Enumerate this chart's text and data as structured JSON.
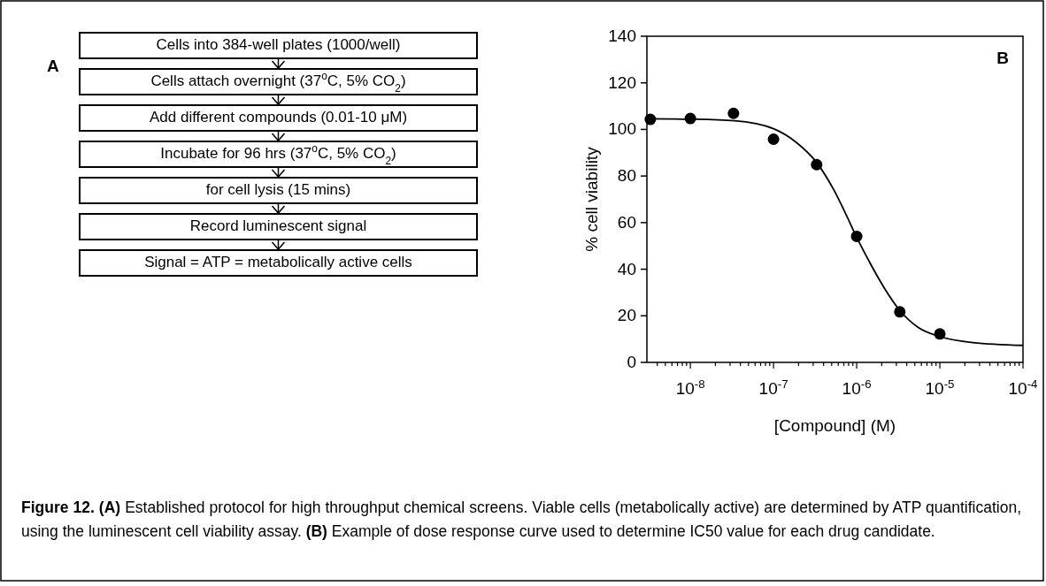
{
  "chart_data": [
    {
      "type": "other",
      "title": "A",
      "annotations": [
        "Cells into 384-well plates (1000/well)",
        "Cells attach overnight (37$^{o}$C, 5% CO$_{2}$)",
        "Add different compounds (0.01-10 μM)",
        "Incubate for 96 hrs (37$^{o}$C, 5% CO$_{2}$)",
        "for cell lysis (15 mins)",
        "Record luminescent signal",
        "Signal = ATP = metabolically active cells"
      ]
    },
    {
      "type": "scatter",
      "title": "B",
      "xlabel": "[Compound] (M)",
      "ylabel": "% cell viability",
      "log": "x",
      "xlim": [
        3e-09,
        0.0001
      ],
      "ylim": [
        0,
        140
      ],
      "yticks": [
        0,
        20,
        40,
        60,
        80,
        100,
        120,
        140
      ],
      "xticks": [
        {
          "value": 4e-09,
          "label": null
        },
        {
          "value": 5e-09,
          "label": null
        },
        {
          "value": 6e-09,
          "label": null
        },
        {
          "value": 7e-09,
          "label": null
        },
        {
          "value": 8e-09,
          "label": null
        },
        {
          "value": 9e-09,
          "label": null
        },
        {
          "value": 1e-08,
          "label": "10$^{-8}$"
        },
        {
          "value": 2e-08,
          "label": null
        },
        {
          "value": 3e-08,
          "label": null
        },
        {
          "value": 4e-08,
          "label": null
        },
        {
          "value": 5e-08,
          "label": null
        },
        {
          "value": 6e-08,
          "label": null
        },
        {
          "value": 7e-08,
          "label": null
        },
        {
          "value": 8e-08,
          "label": null
        },
        {
          "value": 9e-08,
          "label": null
        },
        {
          "value": 1e-07,
          "label": "10$^{-7}$"
        },
        {
          "value": 2e-07,
          "label": null
        },
        {
          "value": 3e-07,
          "label": null
        },
        {
          "value": 4e-07,
          "label": null
        },
        {
          "value": 5e-07,
          "label": null
        },
        {
          "value": 6e-07,
          "label": null
        },
        {
          "value": 7e-07,
          "label": null
        },
        {
          "value": 8e-07,
          "label": null
        },
        {
          "value": 9e-07,
          "label": null
        },
        {
          "value": 1e-06,
          "label": "10$^{-6}$"
        },
        {
          "value": 2e-06,
          "label": null
        },
        {
          "value": 3e-06,
          "label": null
        },
        {
          "value": 4e-06,
          "label": null
        },
        {
          "value": 5e-06,
          "label": null
        },
        {
          "value": 6e-06,
          "label": null
        },
        {
          "value": 7e-06,
          "label": null
        },
        {
          "value": 8e-06,
          "label": null
        },
        {
          "value": 9e-06,
          "label": null
        },
        {
          "value": 1e-05,
          "label": "10$^{-5}$"
        },
        {
          "value": 2e-05,
          "label": null
        },
        {
          "value": 3e-05,
          "label": null
        },
        {
          "value": 4e-05,
          "label": null
        },
        {
          "value": 5e-05,
          "label": null
        },
        {
          "value": 6e-05,
          "label": null
        },
        {
          "value": 7e-05,
          "label": null
        },
        {
          "value": 8e-05,
          "label": null
        },
        {
          "value": 9e-05,
          "label": null
        },
        {
          "value": 0.0001,
          "label": "10$^{-4}$"
        }
      ],
      "series": [
        {
          "type": "scatter",
          "marker": "circle",
          "color": "#000000",
          "x": [
            3.3e-09,
            1e-08,
            3.3e-08,
            1e-07,
            3.3e-07,
            1e-06,
            3.3e-06,
            1e-05
          ],
          "values": [
            104.3,
            104.7,
            106.9,
            95.8,
            84.9,
            54.1,
            21.7,
            12.2
          ]
        },
        {
          "type": "line",
          "marker": "none",
          "color": "#000000",
          "x": [
            3.1e-09,
            1e-08,
            3.4e-08,
            1e-07,
            1.87e-07,
            3.3e-07,
            5.3e-07,
            7.7e-07,
            1e-06,
            1.48e-06,
            2.16e-06,
            3.3e-06,
            5.5e-06,
            1e-05,
            2.5e-05,
            0.0001
          ],
          "values": [
            104.6,
            104.4,
            103.7,
            100.3,
            94.5,
            85.8,
            74.1,
            62.4,
            53.7,
            42,
            31.8,
            22.3,
            15,
            11.1,
            8.5,
            7.3
          ]
        }
      ],
      "annotations": [
        "Figure 12.",
        "(A)",
        "Established protocol for high throughput chemical screens. Viable cells (metabolically active) are determined by ATP quantification, using the luminescent cell viability assay.",
        "(B)",
        "Example of dose response curve used to determine IC50 value for each drug candidate."
      ]
    }
  ]
}
